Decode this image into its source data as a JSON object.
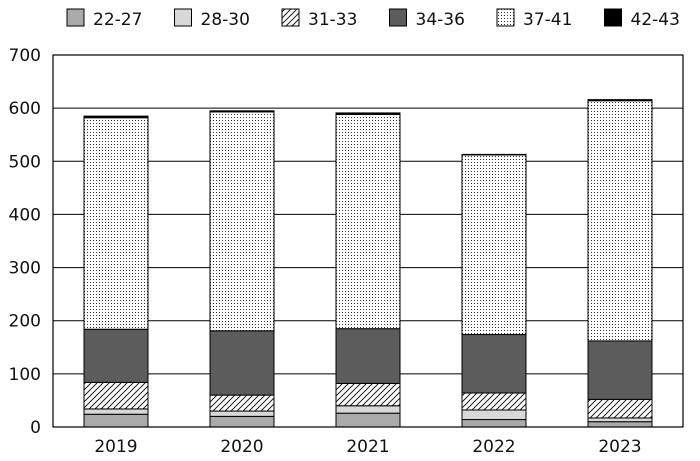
{
  "chart_data": {
    "type": "bar",
    "stacked": true,
    "categories": [
      "2019",
      "2020",
      "2021",
      "2022",
      "2023"
    ],
    "ylim": [
      0,
      700
    ],
    "yticks": [
      0,
      100,
      200,
      300,
      400,
      500,
      600,
      700
    ],
    "grid": true,
    "legend": "top",
    "series": [
      {
        "name": "22-27",
        "values": [
          24,
          20,
          26,
          14,
          10
        ],
        "fill": "#aaaaaa"
      },
      {
        "name": "28-30",
        "values": [
          10,
          10,
          14,
          18,
          7
        ],
        "fill": "#d8d8d8"
      },
      {
        "name": "31-33",
        "values": [
          50,
          30,
          42,
          32,
          35
        ],
        "fill": "hatch"
      },
      {
        "name": "34-36",
        "values": [
          100,
          121,
          103,
          110,
          110
        ],
        "fill": "#5c5c5c"
      },
      {
        "name": "37-41",
        "values": [
          398,
          412,
          403,
          338,
          452
        ],
        "fill": "dots"
      },
      {
        "name": "42-43",
        "values": [
          3,
          2,
          3,
          1,
          2
        ],
        "fill": "#000000"
      }
    ]
  }
}
